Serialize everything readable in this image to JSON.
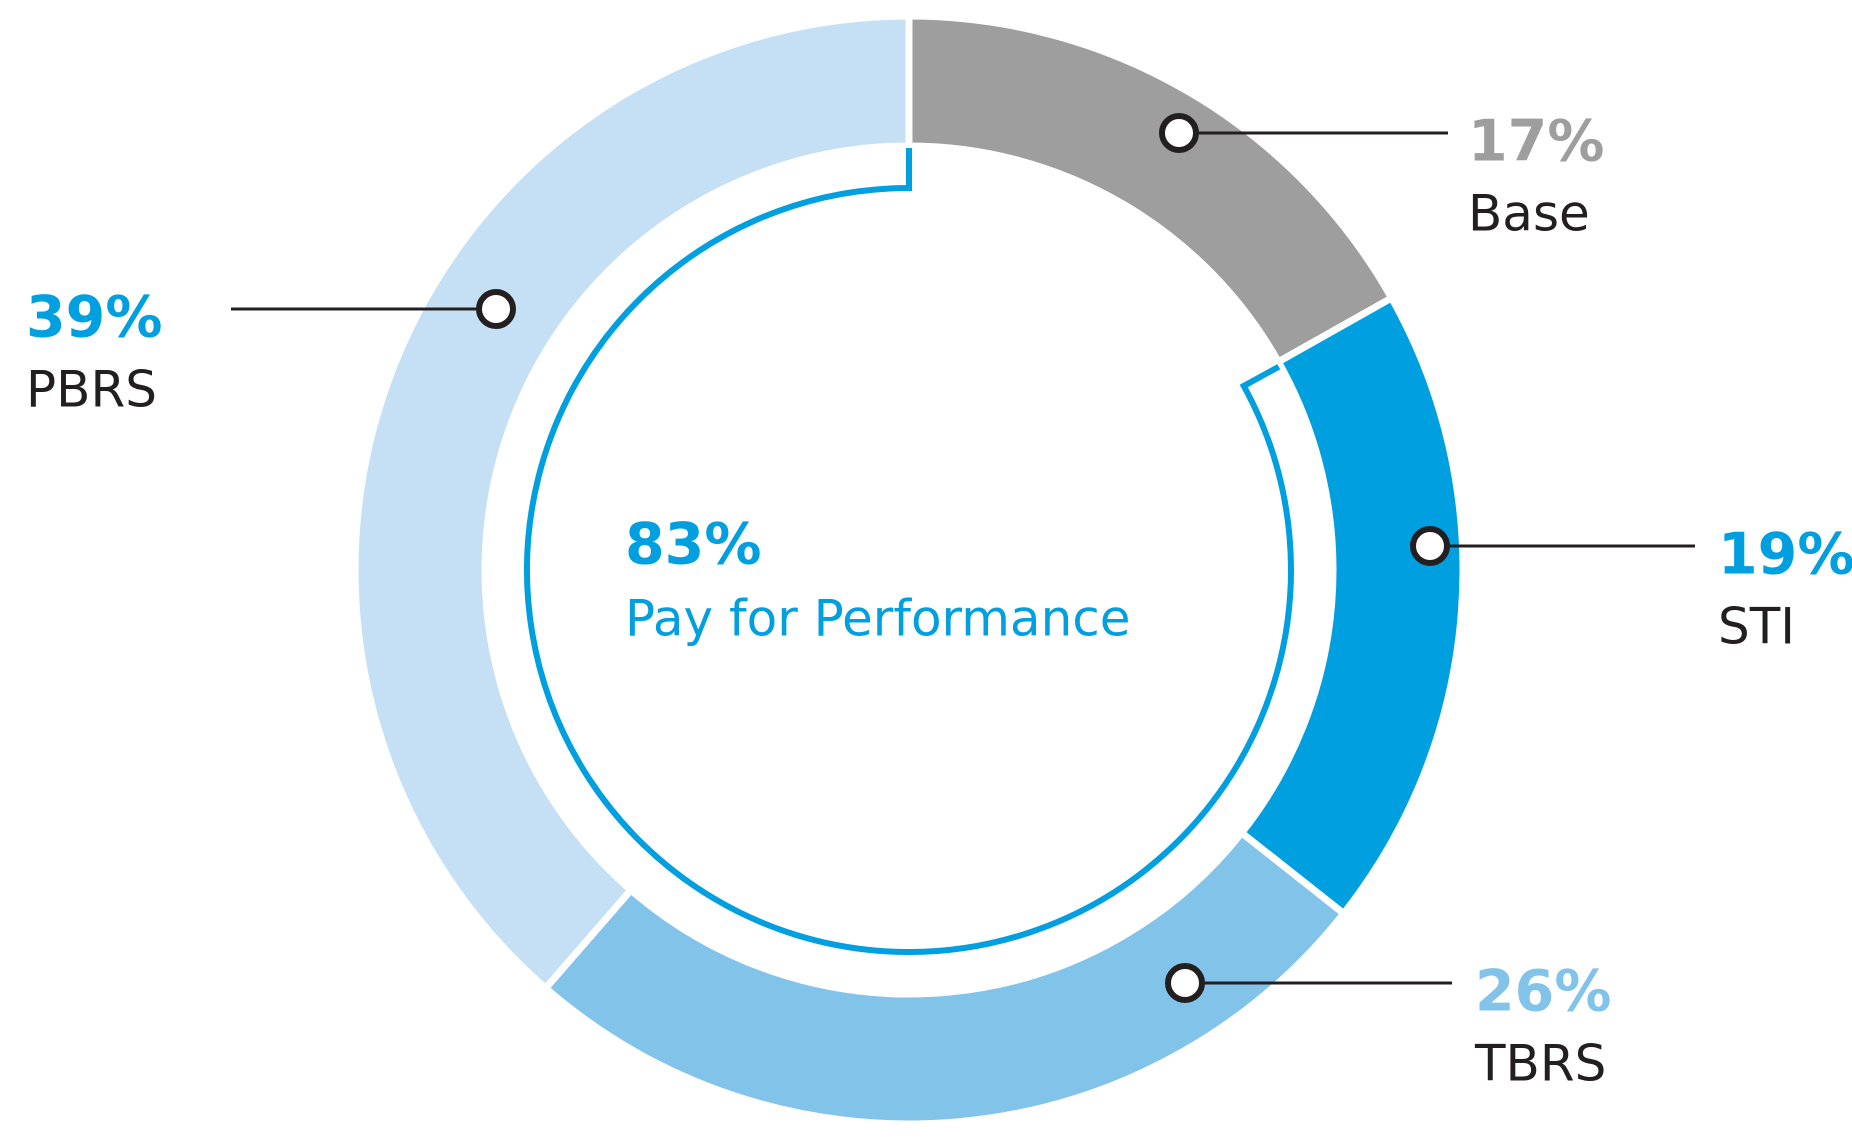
{
  "chart_data": {
    "type": "donut",
    "categories": [
      "Base",
      "STI",
      "TBRS",
      "PBRS"
    ],
    "values": [
      17,
      19,
      26,
      39
    ],
    "value_labels": [
      "17%",
      "19%",
      "26%",
      "39%"
    ],
    "colors": [
      "#9e9e9e",
      "#009fdf",
      "#82c3ea",
      "#c5e0f4"
    ],
    "label_colors": [
      "#9e9e9e",
      "#009fdf",
      "#82c3ea",
      "#009fdf"
    ],
    "annotation": {
      "value": 83,
      "value_label": "83%",
      "text": "Pay for Performance",
      "color": "#009fdf"
    }
  }
}
